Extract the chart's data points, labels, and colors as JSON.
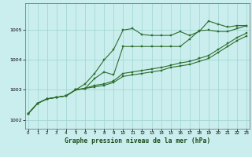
{
  "title": "Graphe pression niveau de la mer (hPa)",
  "background_color": "#caeeed",
  "grid_color": "#9dd4d0",
  "line_color": "#2d6e2d",
  "xlabel_color": "#1a4a1a",
  "x_ticks": [
    0,
    1,
    2,
    3,
    4,
    5,
    6,
    7,
    8,
    9,
    10,
    11,
    12,
    13,
    14,
    15,
    16,
    17,
    18,
    19,
    20,
    21,
    22,
    23
  ],
  "xlim": [
    -0.3,
    23.3
  ],
  "ylim": [
    1001.7,
    1005.9
  ],
  "yticks": [
    1002,
    1003,
    1004,
    1005
  ],
  "series": [
    [
      1002.2,
      1002.55,
      1002.7,
      1002.75,
      1002.8,
      1003.0,
      1003.2,
      1003.55,
      1004.0,
      1004.35,
      1005.0,
      1005.05,
      1004.85,
      1004.82,
      1004.82,
      1004.82,
      1004.95,
      1004.82,
      1004.95,
      1005.3,
      1005.2,
      1005.1,
      1005.15,
      1005.15
    ],
    [
      1002.2,
      1002.55,
      1002.7,
      1002.75,
      1002.8,
      1003.0,
      1003.05,
      1003.38,
      1003.6,
      1003.5,
      1004.45,
      1004.45,
      1004.45,
      1004.45,
      1004.45,
      1004.45,
      1004.45,
      1004.7,
      1004.98,
      1005.0,
      1004.95,
      1004.95,
      1005.05,
      1005.15
    ],
    [
      1002.2,
      1002.55,
      1002.7,
      1002.75,
      1002.8,
      1003.0,
      1003.05,
      1003.15,
      1003.2,
      1003.3,
      1003.55,
      1003.6,
      1003.65,
      1003.7,
      1003.75,
      1003.82,
      1003.9,
      1003.95,
      1004.05,
      1004.15,
      1004.35,
      1004.55,
      1004.75,
      1004.9
    ],
    [
      1002.2,
      1002.55,
      1002.7,
      1002.75,
      1002.8,
      1003.0,
      1003.05,
      1003.1,
      1003.15,
      1003.25,
      1003.45,
      1003.5,
      1003.55,
      1003.6,
      1003.65,
      1003.75,
      1003.8,
      1003.85,
      1003.95,
      1004.05,
      1004.25,
      1004.45,
      1004.65,
      1004.8
    ]
  ]
}
